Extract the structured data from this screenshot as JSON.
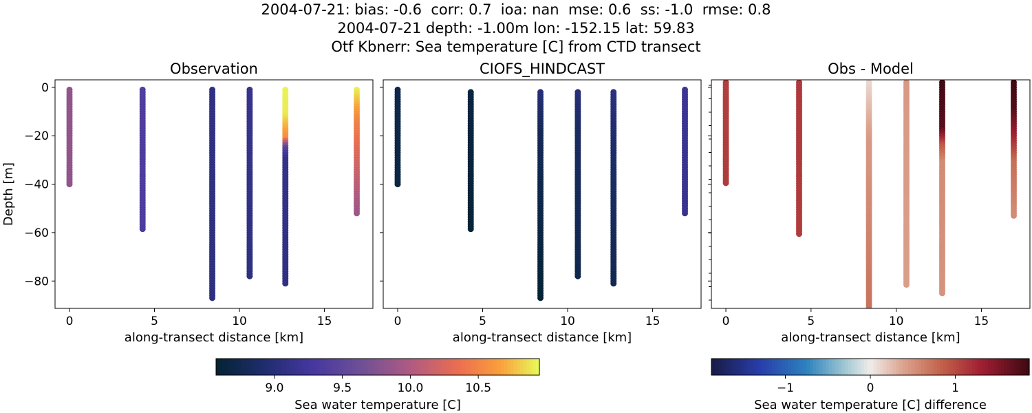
{
  "figure": {
    "title_lines": [
      "2004-07-21: bias: -0.6  corr: 0.7  ioa: nan  mse: 0.6  ss: -1.0  rmse: 0.8",
      "2004-07-21 depth: -1.00m lon: -152.15 lat: 59.83",
      "Otf Kbnerr: Sea temperature [C] from CTD transect"
    ]
  },
  "chart_data": [
    {
      "type": "scatter",
      "title": "Observation",
      "xlabel": "along-transect distance [km]",
      "ylabel": "Depth [m]",
      "xlim": [
        -0.85,
        17.85
      ],
      "ylim": [
        -91.3,
        3.1
      ],
      "xticks": [
        0,
        5,
        10,
        15
      ],
      "yticks": [
        0,
        -20,
        -40,
        -60,
        -80
      ],
      "yticklabels": [
        "0",
        "−20",
        "−40",
        "−60",
        "−80"
      ],
      "colormap": "thermal",
      "colorbar_label": "Sea water temperature [C]",
      "color_range": [
        8.57,
        10.95
      ],
      "colorbar_ticks": [
        9.0,
        9.5,
        10.0,
        10.5
      ],
      "colorbar_ticklabels": [
        "9.0",
        "9.5",
        "10.0",
        "10.5"
      ],
      "casts": [
        {
          "x": 0.0,
          "top": -1,
          "bottom": -40,
          "profile": [
            [
              0,
              9.83
            ],
            [
              1,
              9.83
            ]
          ]
        },
        {
          "x": 4.3,
          "top": -1,
          "bottom": -58.5,
          "profile": [
            [
              0,
              9.38
            ],
            [
              1,
              9.35
            ]
          ]
        },
        {
          "x": 8.4,
          "top": -1,
          "bottom": -87,
          "profile": [
            [
              0,
              9.08
            ],
            [
              1,
              9.05
            ]
          ]
        },
        {
          "x": 10.6,
          "top": -1,
          "bottom": -78,
          "profile": [
            [
              0,
              9.15
            ],
            [
              1,
              9.05
            ]
          ]
        },
        {
          "x": 12.7,
          "top": -1,
          "bottom": -81,
          "profile": [
            [
              0,
              10.93
            ],
            [
              0.13,
              10.9
            ],
            [
              0.25,
              10.55
            ],
            [
              0.3,
              9.5
            ],
            [
              0.36,
              9.1
            ],
            [
              1,
              9.08
            ]
          ]
        },
        {
          "x": 16.9,
          "top": -1,
          "bottom": -52,
          "profile": [
            [
              0,
              10.92
            ],
            [
              0.25,
              10.5
            ],
            [
              0.55,
              10.25
            ],
            [
              1,
              9.9
            ]
          ]
        }
      ]
    },
    {
      "type": "scatter",
      "title": "CIOFS_HINDCAST",
      "xlabel": "along-transect distance [km]",
      "ylabel": "",
      "xlim": [
        -0.85,
        17.85
      ],
      "ylim": [
        -91.3,
        3.1
      ],
      "xticks": [
        0,
        5,
        10,
        15
      ],
      "yticks": [
        0,
        -20,
        -40,
        -60,
        -80
      ],
      "colormap": "thermal",
      "color_range": [
        8.57,
        10.95
      ],
      "casts": [
        {
          "x": 0.0,
          "top": -1,
          "bottom": -40,
          "profile": [
            [
              0,
              8.72
            ],
            [
              1,
              8.66
            ]
          ]
        },
        {
          "x": 4.3,
          "top": -2,
          "bottom": -58.5,
          "profile": [
            [
              0,
              8.65
            ],
            [
              1,
              8.6
            ]
          ]
        },
        {
          "x": 8.4,
          "top": -2,
          "bottom": -87,
          "profile": [
            [
              0,
              9.0
            ],
            [
              0.2,
              8.78
            ],
            [
              1,
              8.58
            ]
          ]
        },
        {
          "x": 10.6,
          "top": -2,
          "bottom": -78,
          "profile": [
            [
              0,
              9.0
            ],
            [
              0.2,
              8.85
            ],
            [
              1,
              8.72
            ]
          ]
        },
        {
          "x": 12.7,
          "top": -2,
          "bottom": -81,
          "profile": [
            [
              0,
              9.05
            ],
            [
              0.25,
              8.9
            ],
            [
              1,
              8.75
            ]
          ]
        },
        {
          "x": 16.9,
          "top": -1,
          "bottom": -52,
          "profile": [
            [
              0,
              9.2
            ],
            [
              1,
              9.15
            ]
          ]
        }
      ]
    },
    {
      "type": "scatter",
      "title": "Obs - Model",
      "xlabel": "along-transect distance [km]",
      "ylabel": "",
      "xlim": [
        -0.85,
        17.85
      ],
      "ylim": [
        -91.3,
        3.1
      ],
      "xticks": [
        0,
        5,
        10,
        15
      ],
      "yticks": [
        0,
        -20,
        -40,
        -60,
        -80
      ],
      "colormap": "balance",
      "colorbar_label": "Sea water temperature [C] difference",
      "color_range": [
        -1.87,
        1.87
      ],
      "colorbar_ticks": [
        -1,
        0,
        1
      ],
      "colorbar_ticklabels": [
        "−1",
        "0",
        "1"
      ],
      "casts": [
        {
          "x": 0.0,
          "top": 2,
          "bottom": -39.5,
          "profile": [
            [
              0,
              1.08
            ],
            [
              1,
              1.1
            ]
          ]
        },
        {
          "x": 4.3,
          "top": 2,
          "bottom": -60.5,
          "profile": [
            [
              0,
              1.12
            ],
            [
              1,
              1.1
            ]
          ]
        },
        {
          "x": 8.4,
          "top": 2,
          "bottom": -91,
          "profile": [
            [
              0,
              0.1
            ],
            [
              0.25,
              0.45
            ],
            [
              1,
              0.72
            ]
          ]
        },
        {
          "x": 10.6,
          "top": 2,
          "bottom": -81.5,
          "profile": [
            [
              0,
              0.45
            ],
            [
              1,
              0.42
            ]
          ]
        },
        {
          "x": 12.7,
          "top": 2,
          "bottom": -85,
          "profile": [
            [
              0,
              1.85
            ],
            [
              0.22,
              1.7
            ],
            [
              0.3,
              0.9
            ],
            [
              0.38,
              0.55
            ],
            [
              1,
              0.5
            ]
          ]
        },
        {
          "x": 16.9,
          "top": 2,
          "bottom": -53,
          "profile": [
            [
              0,
              1.85
            ],
            [
              0.2,
              1.75
            ],
            [
              0.4,
              1.3
            ],
            [
              0.6,
              0.75
            ],
            [
              1,
              0.55
            ]
          ]
        }
      ]
    }
  ]
}
